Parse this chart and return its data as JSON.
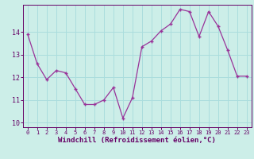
{
  "x": [
    0,
    1,
    2,
    3,
    4,
    5,
    6,
    7,
    8,
    9,
    10,
    11,
    12,
    13,
    14,
    15,
    16,
    17,
    18,
    19,
    20,
    21,
    22,
    23
  ],
  "y": [
    13.9,
    12.6,
    11.9,
    12.3,
    12.2,
    11.5,
    10.8,
    10.8,
    11.0,
    11.55,
    10.2,
    11.1,
    13.35,
    13.6,
    14.05,
    14.35,
    15.0,
    14.9,
    13.8,
    14.9,
    14.25,
    13.2,
    12.05,
    12.05
  ],
  "line_color": "#993399",
  "marker": "+",
  "bg_color": "#cceee8",
  "grid_color": "#aadddd",
  "axis_label_color": "#660066",
  "tick_color": "#660066",
  "spine_color": "#660066",
  "xlabel": "Windchill (Refroidissement éolien,°C)",
  "xlim": [
    -0.5,
    23.5
  ],
  "ylim": [
    9.8,
    15.2
  ],
  "yticks": [
    10,
    11,
    12,
    13,
    14
  ],
  "xticks": [
    0,
    1,
    2,
    3,
    4,
    5,
    6,
    7,
    8,
    9,
    10,
    11,
    12,
    13,
    14,
    15,
    16,
    17,
    18,
    19,
    20,
    21,
    22,
    23
  ]
}
